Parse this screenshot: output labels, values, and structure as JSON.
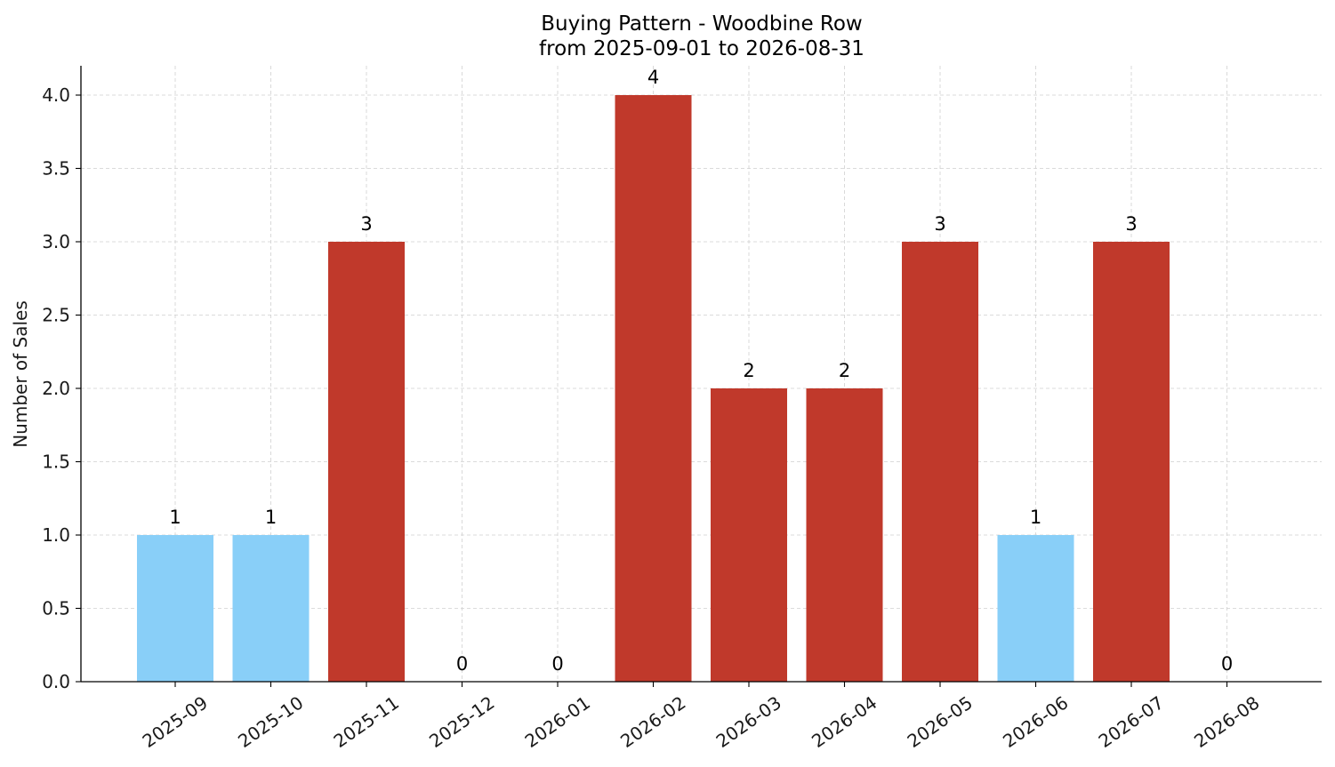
{
  "chart_data": {
    "type": "bar",
    "title": "Buying Pattern - Woodbine Row",
    "subtitle": "from 2025-09-01 to 2026-08-31",
    "xlabel": "",
    "ylabel": "Number of Sales",
    "categories": [
      "2025-09",
      "2025-10",
      "2025-11",
      "2025-12",
      "2026-01",
      "2026-02",
      "2026-03",
      "2026-04",
      "2026-05",
      "2026-06",
      "2026-07",
      "2026-08"
    ],
    "values": [
      1,
      1,
      3,
      0,
      0,
      4,
      2,
      2,
      3,
      1,
      3,
      0
    ],
    "data_labels": [
      "1",
      "1",
      "3",
      "0",
      "0",
      "4",
      "2",
      "2",
      "3",
      "1",
      "3",
      "0"
    ],
    "bar_colors": [
      "#89cff8",
      "#89cff8",
      "#c0392b",
      "#c0392b",
      "#c0392b",
      "#c0392b",
      "#c0392b",
      "#c0392b",
      "#c0392b",
      "#89cff8",
      "#c0392b",
      "#c0392b"
    ],
    "ylim": [
      0,
      4.2
    ],
    "yticks": [
      0.0,
      0.5,
      1.0,
      1.5,
      2.0,
      2.5,
      3.0,
      3.5,
      4.0
    ],
    "ytick_labels": [
      "0.0",
      "0.5",
      "1.0",
      "1.5",
      "2.0",
      "2.5",
      "3.0",
      "3.5",
      "4.0"
    ],
    "grid": true,
    "legend": "none"
  },
  "colors": {
    "low": "#89cff8",
    "high": "#c0392b",
    "grid": "#d0d0d0",
    "axis": "#000000"
  }
}
